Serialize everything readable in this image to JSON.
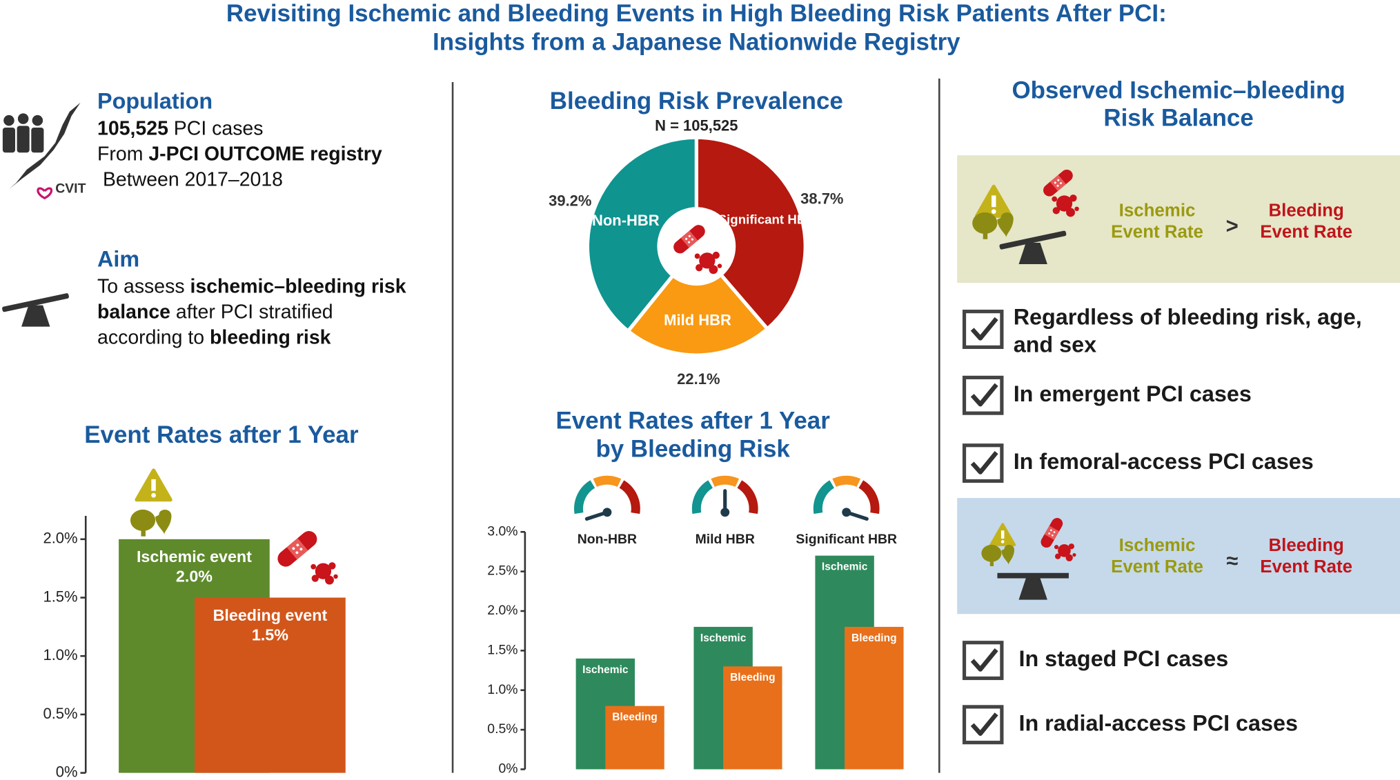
{
  "title_lines": [
    "Revisiting Ischemic and Bleeding Events in High Bleeding Risk Patients After PCI:",
    "Insights from a Japanese Nationwide Registry"
  ],
  "population": {
    "heading": "Population",
    "lines": [
      [
        {
          "text": "105,525",
          "bold": true
        },
        {
          "text": " PCI cases",
          "bold": false
        }
      ],
      [
        {
          "text": "From ",
          "bold": false
        },
        {
          "text": "J-PCI OUTCOME registry",
          "bold": true
        }
      ],
      [
        {
          "text": " Between 2017–2018",
          "bold": false
        }
      ]
    ]
  },
  "logo": "CVIT",
  "aim": {
    "heading": "Aim",
    "lines": [
      [
        {
          "text": "To assess ",
          "bold": false
        },
        {
          "text": "ischemic–bleeding risk",
          "bold": true
        }
      ],
      [
        {
          "text": "balance",
          "bold": true
        },
        {
          "text": " after PCI stratified",
          "bold": false
        }
      ],
      [
        {
          "text": "according to ",
          "bold": false
        },
        {
          "text": "bleeding risk",
          "bold": true
        }
      ]
    ]
  },
  "chart_data": [
    {
      "type": "bar",
      "title": "Event Rates after 1 Year",
      "categories": [
        "Ischemic event",
        "Bleeding event"
      ],
      "values": [
        2.0,
        1.5
      ],
      "value_labels": [
        "2.0%",
        "1.5%"
      ],
      "colors": [
        "#5e8a2c",
        "#d2561a"
      ],
      "ylim": [
        0,
        2.2
      ],
      "yticks": [
        {
          "value": 0,
          "label": "0%"
        },
        {
          "value": 0.5,
          "label": "0.5%"
        },
        {
          "value": 1.0,
          "label": "1.0%"
        },
        {
          "value": 1.5,
          "label": "1.5%"
        },
        {
          "value": 2.0,
          "label": "2.0%"
        }
      ]
    },
    {
      "type": "pie",
      "title": "Bleeding Risk Prevalence",
      "subtitle": "N = 105,525",
      "categories": [
        "Significant HBR",
        "Mild HBR",
        "Non-HBR"
      ],
      "values": [
        38.7,
        22.1,
        39.2
      ],
      "value_labels": [
        "38.7%",
        "22.1%",
        "39.2%"
      ],
      "colors": [
        "#b5190f",
        "#f99a12",
        "#0f9490"
      ]
    },
    {
      "type": "grouped_bar",
      "title_lines": [
        "Event Rates after 1 Year",
        "by Bleeding Risk"
      ],
      "categories": [
        "Non-HBR",
        "Mild HBR",
        "Significant HBR"
      ],
      "series": [
        {
          "name": "Ischemic",
          "color": "#2e8a5c",
          "values": [
            1.4,
            1.8,
            2.7
          ]
        },
        {
          "name": "Bleeding",
          "color": "#e8701a",
          "values": [
            0.8,
            1.3,
            1.8
          ]
        }
      ],
      "ylim": [
        0,
        3.0
      ],
      "yticks": [
        {
          "value": 0,
          "label": "0%"
        },
        {
          "value": 0.5,
          "label": "0.5%"
        },
        {
          "value": 1.0,
          "label": "1.0%"
        },
        {
          "value": 1.5,
          "label": "1.5%"
        },
        {
          "value": 2.0,
          "label": "2.0%"
        },
        {
          "value": 2.5,
          "label": "2.5%"
        },
        {
          "value": 3.0,
          "label": "3.0%"
        }
      ]
    }
  ],
  "balance": {
    "heading_lines": [
      "Observed Ischemic–bleeding",
      "Risk Balance"
    ],
    "panels": [
      {
        "ischemic_lines": [
          "Ischemic",
          "Event Rate"
        ],
        "relation": ">",
        "bleeding_lines": [
          "Bleeding",
          "Event Rate"
        ],
        "checks": [
          [
            "Regardless of bleeding risk, age,",
            "and sex"
          ],
          [
            "In emergent PCI cases"
          ],
          [
            "In femoral-access PCI cases"
          ]
        ]
      },
      {
        "ischemic_lines": [
          "Ischemic",
          "Event Rate"
        ],
        "relation": "≈",
        "bleeding_lines": [
          "Bleeding",
          "Event Rate"
        ],
        "checks": [
          [
            "In staged PCI cases"
          ],
          [
            "In radial-access PCI cases"
          ]
        ]
      }
    ]
  }
}
